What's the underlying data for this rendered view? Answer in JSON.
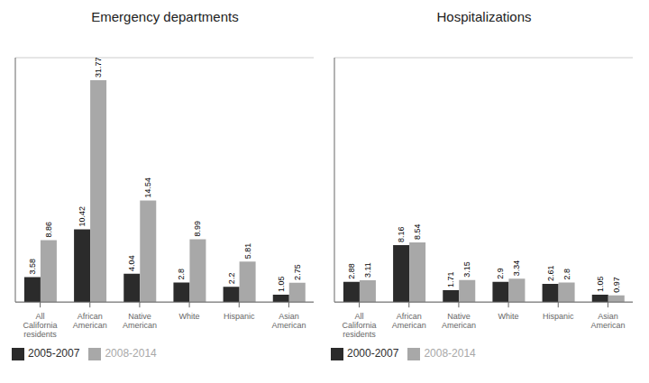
{
  "chart_data": [
    {
      "type": "bar",
      "title": "Emergency departments",
      "categories": [
        "All\nCalifornia\nresidents",
        "African\nAmerican",
        "Native\nAmerican",
        "White",
        "Hispanic",
        "Asian\nAmerican"
      ],
      "series": [
        {
          "name": "2005-2007",
          "color": "#2b2b2b",
          "values": [
            3.58,
            10.42,
            4.04,
            2.8,
            2.2,
            1.05
          ]
        },
        {
          "name": "2008-2014",
          "color": "#a8a8a8",
          "values": [
            8.86,
            31.77,
            14.54,
            8.99,
            5.81,
            2.75
          ]
        }
      ],
      "ylim": [
        0,
        35
      ],
      "yticks": [
        0,
        5,
        10,
        15,
        20,
        25,
        30,
        35
      ],
      "grid": true,
      "data_labels": true,
      "tick_labels": "x",
      "legend": "lower left"
    },
    {
      "type": "bar",
      "title": "Hospitalizations",
      "categories": [
        "All\nCalifornia\nresidents",
        "African\nAmerican",
        "Native\nAmerican",
        "White",
        "Hispanic",
        "Asian\nAmerican"
      ],
      "series": [
        {
          "name": "2000-2007",
          "color": "#2b2b2b",
          "values": [
            2.88,
            8.16,
            1.71,
            2.9,
            2.61,
            1.05
          ]
        },
        {
          "name": "2008-2014",
          "color": "#a8a8a8",
          "values": [
            3.11,
            8.54,
            3.15,
            3.34,
            2.8,
            0.97
          ]
        }
      ],
      "ylim": [
        0,
        35
      ],
      "yticks": [
        0,
        5,
        10,
        15,
        20,
        25,
        30,
        35
      ],
      "grid": true,
      "data_labels": true,
      "tick_labels": "x",
      "legend": "lower left"
    }
  ]
}
